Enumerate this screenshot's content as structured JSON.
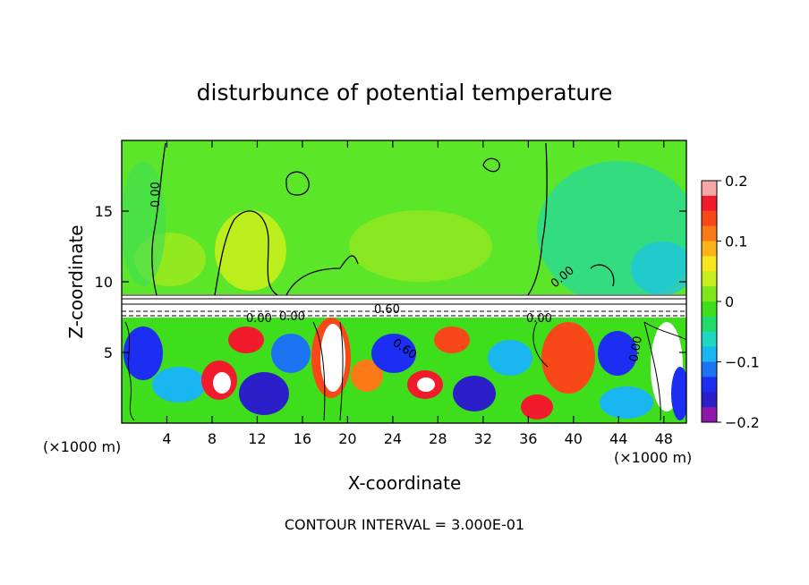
{
  "chart_data": {
    "type": "heatmap",
    "title": "disturbunce of potential temperature",
    "xlabel": "X-coordinate",
    "ylabel": "Z-coordinate",
    "x_unit_left": "(×1000 m)",
    "x_unit_right": "(×1000 m)",
    "xlim": [
      0,
      50
    ],
    "ylim": [
      0,
      20
    ],
    "x_ticks": [
      4,
      8,
      12,
      16,
      20,
      24,
      28,
      32,
      36,
      40,
      44,
      48
    ],
    "y_ticks": [
      5,
      10,
      15
    ],
    "colorbar": {
      "range": [
        -0.2,
        0.2
      ],
      "ticks": [
        "0.2",
        "0.1",
        "0",
        "−0.1",
        "−0.2"
      ],
      "tick_values": [
        0.2,
        0.1,
        0,
        -0.1,
        -0.2
      ],
      "colors": [
        "#f7a6a6",
        "#f21b2b",
        "#f8481a",
        "#fb7a18",
        "#fcb31a",
        "#f7e61c",
        "#c7ee1c",
        "#7ee61a",
        "#3fde1c",
        "#22d96b",
        "#1fd6c2",
        "#1ab6f2",
        "#1c74f2",
        "#1c2ef2",
        "#2a1fc8",
        "#8c17a8"
      ]
    },
    "contour_interval_text": "CONTOUR INTERVAL = 3.000E-01",
    "contour_labels": [
      "0.00",
      "0.00",
      "0.00",
      "0.00",
      "0.60",
      "0.60",
      "0.00",
      "0.00"
    ]
  },
  "colors": {
    "upper_layer": "#5ce62a",
    "inversion_band": "#ffffff",
    "contour": "#000000"
  }
}
